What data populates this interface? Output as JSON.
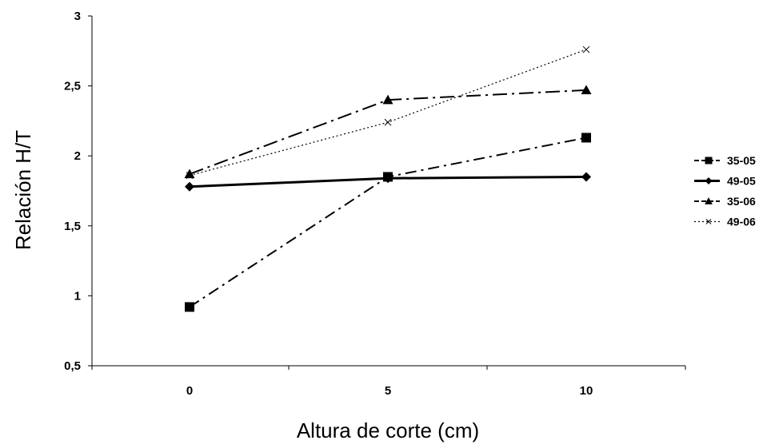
{
  "chart_data": {
    "type": "line",
    "title": "",
    "xlabel": "Altura de corte (cm)",
    "ylabel": "Relación H/T",
    "categories": [
      "0",
      "5",
      "10"
    ],
    "x": [
      0,
      5,
      10
    ],
    "ylim": [
      0.5,
      3
    ],
    "yticks": [
      0.5,
      1,
      1.5,
      2,
      2.5,
      3
    ],
    "ytick_labels": [
      "0,5",
      "1",
      "1,5",
      "2",
      "2,5",
      "3"
    ],
    "grid": false,
    "legend_position": "right",
    "series": [
      {
        "name": "35-05",
        "values": [
          0.92,
          1.85,
          2.13
        ],
        "marker": "square",
        "line": "dash-dot",
        "color": "#000000"
      },
      {
        "name": "49-05",
        "values": [
          1.78,
          1.84,
          1.85
        ],
        "marker": "diamond",
        "line": "solid",
        "color": "#000000"
      },
      {
        "name": "35-06",
        "values": [
          1.87,
          2.4,
          2.47
        ],
        "marker": "triangle",
        "line": "long-dash-dot",
        "color": "#000000"
      },
      {
        "name": "49-06",
        "values": [
          1.86,
          2.24,
          2.76
        ],
        "marker": "x",
        "line": "dotted",
        "color": "#000000"
      }
    ]
  }
}
